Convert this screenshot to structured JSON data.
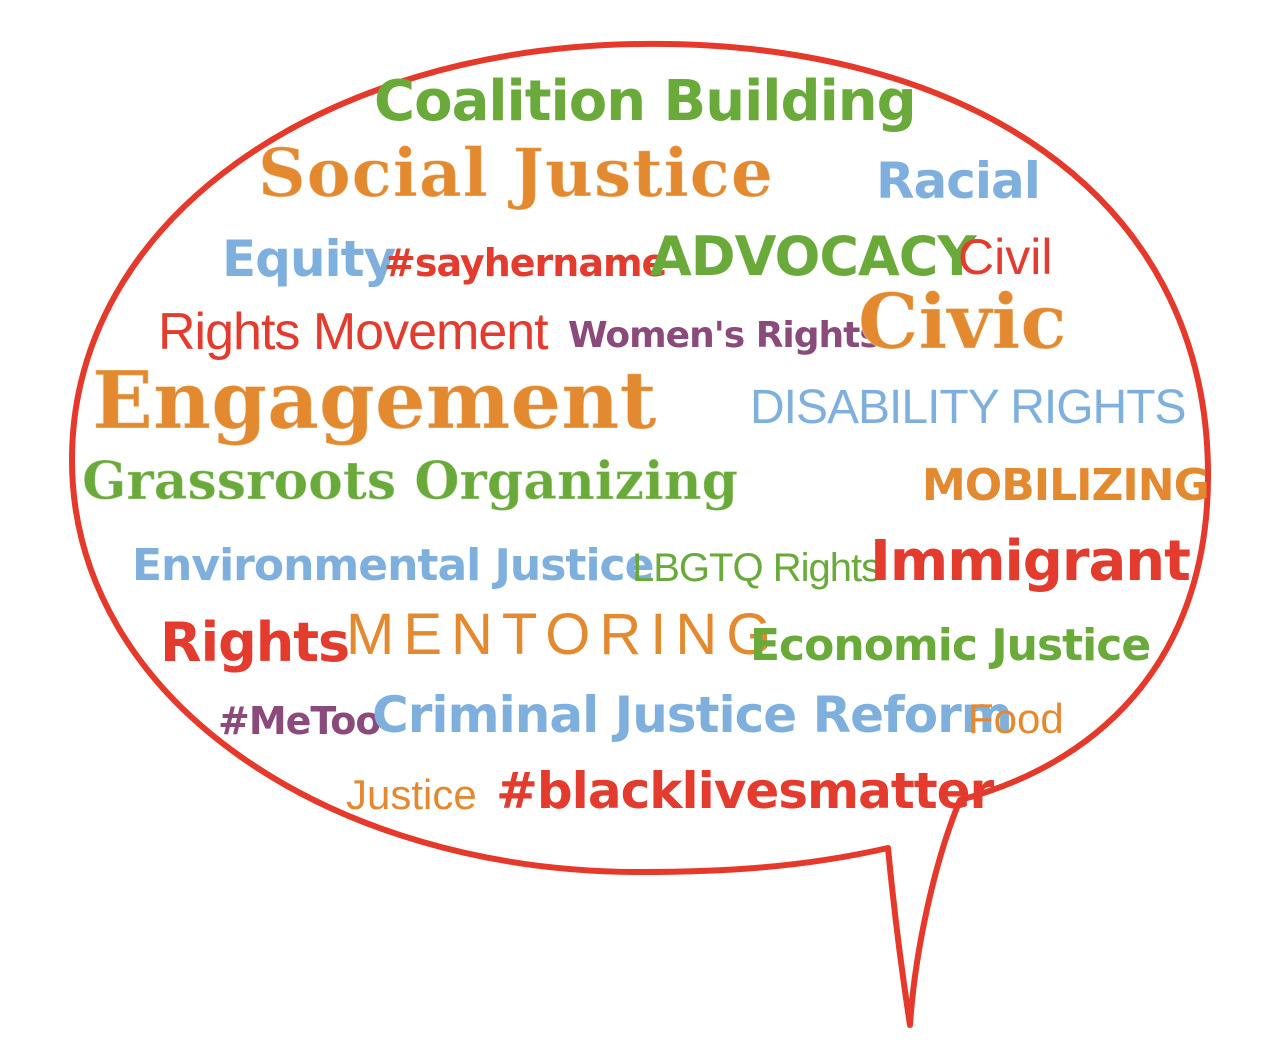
{
  "colors": {
    "green": "#6aaa3a",
    "orange": "#e3892f",
    "blue": "#7fb0dd",
    "red": "#e43b2f",
    "purple": "#8a4a7c",
    "outline": "#e4392b"
  },
  "words": {
    "coalition_building": "Coalition Building",
    "social_justice": "Social Justice",
    "racial": "Racial",
    "equity": "Equity",
    "sayhername": "#sayhername",
    "advocacy": "ADVOCACY",
    "civil": "Civil",
    "rights_movement": "Rights Movement",
    "womens_rights": "Women's Rights",
    "civic": "Civic",
    "engagement": "Engagement",
    "disability_rights": "DISABILITY RIGHTS",
    "grassroots_organizing": "Grassroots Organizing",
    "mobilizing": "MOBILIZING",
    "environmental_justice": "Environmental Justice",
    "lbgtq_rights": "LBGTQ Rights",
    "immigrant": "Immigrant",
    "rights": "Rights",
    "mentoring": "MENTORING",
    "economic_justice": "Economic Justice",
    "metoo": "#MeToo",
    "criminal_justice_reform": "Criminal Justice Reform",
    "food": "Food",
    "justice": "Justice",
    "blacklivesmatter": "#blacklivesmatter"
  }
}
